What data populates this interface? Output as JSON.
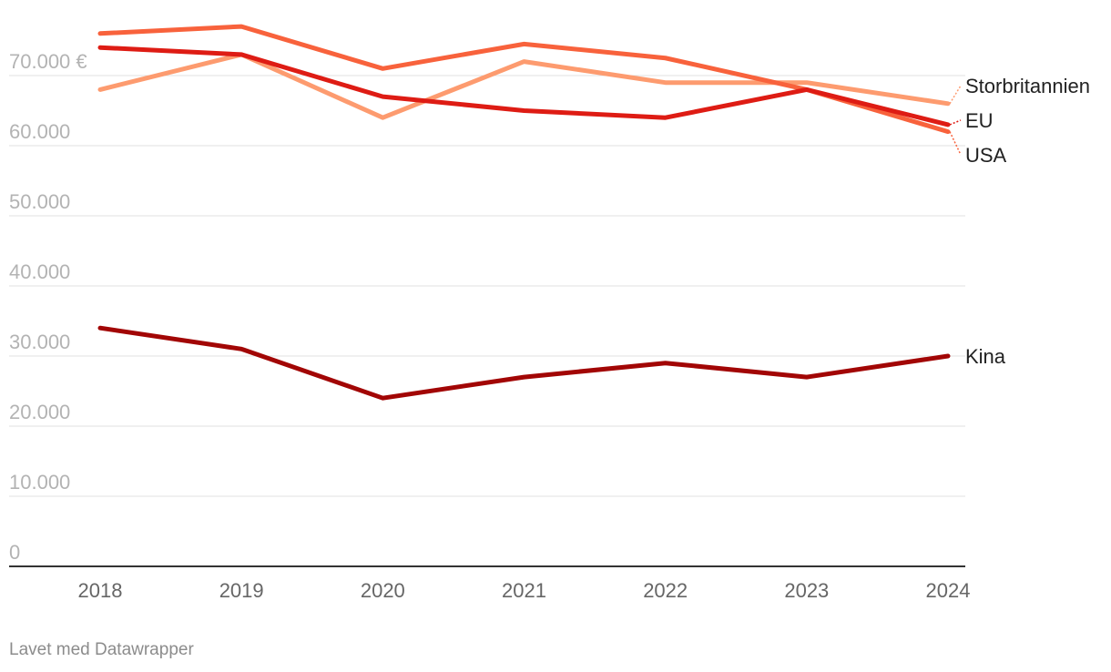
{
  "chart_data": {
    "type": "line",
    "x": [
      "2018",
      "2019",
      "2020",
      "2021",
      "2022",
      "2023",
      "2024"
    ],
    "y_ticks": [
      "0",
      "10.000",
      "20.000",
      "30.000",
      "40.000",
      "50.000",
      "60.000",
      "70.000 €"
    ],
    "ylim": [
      0,
      80000
    ],
    "grid": true,
    "legend": "direct labels at line ends",
    "series": [
      {
        "name": "Storbritannien",
        "color": "#fd9b6f",
        "values": [
          68000,
          73000,
          64000,
          72000,
          69000,
          69000,
          66000
        ]
      },
      {
        "name": "USA",
        "color": "#f8623c",
        "values": [
          76000,
          77000,
          71000,
          74500,
          72500,
          68000,
          62000
        ]
      },
      {
        "name": "EU",
        "color": "#de1c14",
        "values": [
          74000,
          73000,
          67000,
          65000,
          64000,
          68000,
          63000
        ]
      },
      {
        "name": "Kina",
        "color": "#a20605",
        "values": [
          34000,
          31000,
          24000,
          27000,
          29000,
          27000,
          30000
        ]
      }
    ]
  },
  "footer": "Lavet med Datawrapper"
}
